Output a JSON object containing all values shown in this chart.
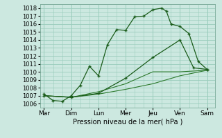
{
  "xlabel": "Pression niveau de la mer( hPa )",
  "background_color": "#cce8e0",
  "grid_color": "#99ccbb",
  "line_color_dark": "#1a5c1a",
  "line_color_mid": "#2d7a2d",
  "ylim": [
    1005.5,
    1018.5
  ],
  "yticks": [
    1006,
    1007,
    1008,
    1009,
    1010,
    1011,
    1012,
    1013,
    1014,
    1015,
    1016,
    1017,
    1018
  ],
  "days": [
    "Mar",
    "Dim",
    "Lun",
    "Mer",
    "Jeu",
    "Ven",
    "Sam"
  ],
  "day_x": [
    0,
    1,
    2,
    3,
    4,
    5,
    6
  ],
  "line1_x": [
    0,
    0.33,
    0.67,
    1.0,
    1.33,
    1.67,
    2.0,
    2.33,
    2.67,
    3.0,
    3.33,
    3.67,
    4.0,
    4.33,
    4.5,
    4.67,
    5.0,
    5.33,
    5.67,
    6.0
  ],
  "line1_y": [
    1007.2,
    1006.4,
    1006.3,
    1007.0,
    1008.3,
    1010.7,
    1009.5,
    1013.4,
    1015.3,
    1015.2,
    1016.9,
    1017.0,
    1017.8,
    1018.0,
    1017.6,
    1016.0,
    1015.7,
    1014.8,
    1011.3,
    1010.3
  ],
  "line2_x": [
    0,
    1,
    2,
    3,
    4,
    5,
    5.5,
    6
  ],
  "line2_y": [
    1007.0,
    1006.8,
    1007.3,
    1009.2,
    1011.8,
    1014.0,
    1010.5,
    1010.3
  ],
  "line3_x": [
    0,
    1,
    2,
    3,
    4,
    5,
    6
  ],
  "line3_y": [
    1007.0,
    1006.8,
    1007.5,
    1008.5,
    1010.0,
    1010.0,
    1010.2
  ],
  "line4_x": [
    0,
    1,
    2,
    3,
    4,
    5,
    6
  ],
  "line4_y": [
    1007.0,
    1006.8,
    1007.2,
    1007.8,
    1008.5,
    1009.5,
    1010.2
  ]
}
